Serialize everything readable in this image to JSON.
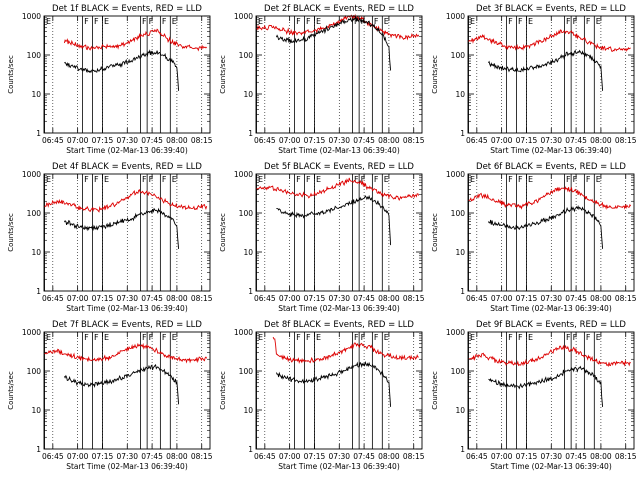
{
  "figure": {
    "ylabel": "Counts/sec",
    "xlabel": "Start Time (02-Mar-13 06:39:40)",
    "x_ticks": [
      "06:45",
      "07:00",
      "07:15",
      "07:30",
      "07:45",
      "08:00",
      "08:15"
    ],
    "y_ticks": [
      "1",
      "10",
      "100",
      "1000"
    ]
  },
  "colors": {
    "events": "#000000",
    "lld": "#dd0000",
    "axes": "#000000",
    "background": "#ffffff"
  },
  "chart_data": [
    {
      "type": "line",
      "title": "Det 1f BLACK = Events, RED = LLD",
      "xlabel": "Start Time (02-Mar-13 06:39:40)",
      "ylabel": "Counts/sec",
      "ylim": [
        1,
        1000
      ],
      "yscale": "log",
      "x_range": [
        "06:39:40",
        "08:20"
      ],
      "markers": [
        {
          "time": "06:40",
          "label": "E"
        },
        {
          "time": "07:03",
          "label": "F"
        },
        {
          "time": "07:09",
          "label": "F"
        },
        {
          "time": "07:15",
          "label": "E"
        },
        {
          "time": "07:38",
          "label": "F"
        },
        {
          "time": "07:42",
          "label": "F"
        },
        {
          "time": "07:50",
          "label": "F"
        },
        {
          "time": "07:56",
          "label": "E"
        }
      ],
      "series": [
        {
          "name": "RED = LLD",
          "color": "#dd0000",
          "x": [
            "06:52",
            "07:00",
            "07:08",
            "07:16",
            "07:24",
            "07:32",
            "07:40",
            "07:48",
            "07:56",
            "08:04",
            "08:12",
            "08:18"
          ],
          "values": [
            240,
            175,
            150,
            160,
            170,
            220,
            340,
            410,
            230,
            160,
            145,
            160
          ]
        },
        {
          "name": "BLACK = Events",
          "color": "#000000",
          "x": [
            "06:52",
            "07:00",
            "07:08",
            "07:16",
            "07:24",
            "07:32",
            "07:40",
            "07:48",
            "07:56",
            "08:00",
            "08:01"
          ],
          "values": [
            62,
            45,
            40,
            45,
            55,
            70,
            105,
            120,
            75,
            48,
            12
          ]
        }
      ]
    },
    {
      "type": "line",
      "title": "Det 2f BLACK = Events, RED = LLD",
      "xlabel": "Start Time (02-Mar-13 06:39:40)",
      "ylabel": "Counts/sec",
      "ylim": [
        1,
        1000
      ],
      "yscale": "log",
      "x_range": [
        "06:39:40",
        "08:20"
      ],
      "markers": [
        {
          "time": "06:40",
          "label": "E"
        },
        {
          "time": "07:03",
          "label": "F"
        },
        {
          "time": "07:09",
          "label": "F"
        },
        {
          "time": "07:15",
          "label": "E"
        },
        {
          "time": "07:38",
          "label": "F"
        },
        {
          "time": "07:42",
          "label": "F"
        },
        {
          "time": "07:50",
          "label": "F"
        },
        {
          "time": "07:56",
          "label": "E"
        }
      ],
      "series": [
        {
          "name": "RED = LLD",
          "color": "#dd0000",
          "x": [
            "06:40",
            "06:48",
            "06:56",
            "07:04",
            "07:12",
            "07:20",
            "07:28",
            "07:36",
            "07:44",
            "07:52",
            "08:00",
            "08:08",
            "08:18"
          ],
          "values": [
            480,
            520,
            430,
            360,
            380,
            480,
            650,
            1000,
            820,
            500,
            340,
            280,
            330
          ]
        },
        {
          "name": "BLACK = Events",
          "color": "#000000",
          "x": [
            "06:52",
            "07:00",
            "07:08",
            "07:16",
            "07:24",
            "07:32",
            "07:40",
            "07:48",
            "07:56",
            "08:00",
            "08:01"
          ],
          "values": [
            300,
            230,
            240,
            330,
            500,
            700,
            860,
            640,
            360,
            160,
            40
          ]
        }
      ]
    },
    {
      "type": "line",
      "title": "Det 3f BLACK = Events, RED = LLD",
      "xlabel": "Start Time (02-Mar-13 06:39:40)",
      "ylabel": "Counts/sec",
      "ylim": [
        1,
        1000
      ],
      "yscale": "log",
      "x_range": [
        "06:39:40",
        "08:20"
      ],
      "markers": [
        {
          "time": "06:40",
          "label": "E"
        },
        {
          "time": "07:03",
          "label": "F"
        },
        {
          "time": "07:09",
          "label": "F"
        },
        {
          "time": "07:15",
          "label": "E"
        },
        {
          "time": "07:38",
          "label": "F"
        },
        {
          "time": "07:42",
          "label": "F"
        },
        {
          "time": "07:50",
          "label": "F"
        },
        {
          "time": "07:56",
          "label": "E"
        }
      ],
      "series": [
        {
          "name": "RED = LLD",
          "color": "#dd0000",
          "x": [
            "06:40",
            "06:48",
            "06:56",
            "07:04",
            "07:12",
            "07:20",
            "07:28",
            "07:36",
            "07:44",
            "07:52",
            "08:00",
            "08:08",
            "08:18"
          ],
          "values": [
            220,
            300,
            210,
            160,
            150,
            190,
            280,
            400,
            350,
            220,
            150,
            140,
            150
          ]
        },
        {
          "name": "BLACK = Events",
          "color": "#000000",
          "x": [
            "06:52",
            "07:00",
            "07:08",
            "07:16",
            "07:24",
            "07:32",
            "07:40",
            "07:48",
            "07:56",
            "08:00",
            "08:01"
          ],
          "values": [
            62,
            45,
            40,
            45,
            55,
            70,
            105,
            120,
            75,
            48,
            12
          ]
        }
      ]
    },
    {
      "type": "line",
      "title": "Det 4f BLACK = Events, RED = LLD",
      "xlabel": "Start Time (02-Mar-13 06:39:40)",
      "ylabel": "Counts/sec",
      "ylim": [
        1,
        1000
      ],
      "yscale": "log",
      "x_range": [
        "06:39:40",
        "08:20"
      ],
      "markers": [
        {
          "time": "06:40",
          "label": "E"
        },
        {
          "time": "07:03",
          "label": "F"
        },
        {
          "time": "07:09",
          "label": "F"
        },
        {
          "time": "07:15",
          "label": "E"
        },
        {
          "time": "07:38",
          "label": "F"
        },
        {
          "time": "07:42",
          "label": "F"
        },
        {
          "time": "07:50",
          "label": "F"
        },
        {
          "time": "07:56",
          "label": "E"
        }
      ],
      "series": [
        {
          "name": "RED = LLD",
          "color": "#dd0000",
          "x": [
            "06:40",
            "06:48",
            "06:56",
            "07:04",
            "07:12",
            "07:20",
            "07:28",
            "07:36",
            "07:44",
            "07:52",
            "08:00",
            "08:08",
            "08:18"
          ],
          "values": [
            160,
            200,
            160,
            130,
            120,
            150,
            230,
            370,
            320,
            200,
            150,
            130,
            150
          ]
        },
        {
          "name": "BLACK = Events",
          "color": "#000000",
          "x": [
            "06:52",
            "07:00",
            "07:08",
            "07:16",
            "07:24",
            "07:32",
            "07:40",
            "07:48",
            "07:56",
            "08:00",
            "08:01"
          ],
          "values": [
            60,
            45,
            40,
            45,
            55,
            70,
            105,
            120,
            75,
            45,
            12
          ]
        }
      ]
    },
    {
      "type": "line",
      "title": "Det 5f BLACK = Events, RED = LLD",
      "xlabel": "Start Time (02-Mar-13 06:39:40)",
      "ylabel": "Counts/sec",
      "ylim": [
        1,
        1000
      ],
      "yscale": "log",
      "x_range": [
        "06:39:40",
        "08:20"
      ],
      "markers": [
        {
          "time": "06:40",
          "label": "E"
        },
        {
          "time": "07:03",
          "label": "F"
        },
        {
          "time": "07:09",
          "label": "F"
        },
        {
          "time": "07:15",
          "label": "E"
        },
        {
          "time": "07:38",
          "label": "F"
        },
        {
          "time": "07:42",
          "label": "F"
        },
        {
          "time": "07:50",
          "label": "F"
        },
        {
          "time": "07:56",
          "label": "E"
        }
      ],
      "series": [
        {
          "name": "RED = LLD",
          "color": "#dd0000",
          "x": [
            "06:40",
            "06:48",
            "06:56",
            "07:04",
            "07:12",
            "07:20",
            "07:28",
            "07:36",
            "07:44",
            "07:52",
            "08:00",
            "08:08",
            "08:18"
          ],
          "values": [
            430,
            470,
            380,
            290,
            280,
            350,
            500,
            680,
            560,
            360,
            270,
            250,
            280
          ]
        },
        {
          "name": "BLACK = Events",
          "color": "#000000",
          "x": [
            "06:52",
            "07:00",
            "07:08",
            "07:16",
            "07:24",
            "07:32",
            "07:40",
            "07:48",
            "07:56",
            "08:00",
            "08:01"
          ],
          "values": [
            130,
            95,
            85,
            95,
            115,
            150,
            210,
            250,
            150,
            90,
            15
          ]
        }
      ]
    },
    {
      "type": "line",
      "title": "Det 6f BLACK = Events, RED = LLD",
      "xlabel": "Start Time (02-Mar-13 06:39:40)",
      "ylabel": "Counts/sec",
      "ylim": [
        1,
        1000
      ],
      "yscale": "log",
      "x_range": [
        "06:39:40",
        "08:20"
      ],
      "markers": [
        {
          "time": "06:40",
          "label": "E"
        },
        {
          "time": "07:03",
          "label": "F"
        },
        {
          "time": "07:09",
          "label": "F"
        },
        {
          "time": "07:15",
          "label": "E"
        },
        {
          "time": "07:38",
          "label": "F"
        },
        {
          "time": "07:42",
          "label": "F"
        },
        {
          "time": "07:50",
          "label": "F"
        },
        {
          "time": "07:56",
          "label": "E"
        }
      ],
      "series": [
        {
          "name": "RED = LLD",
          "color": "#dd0000",
          "x": [
            "06:40",
            "06:48",
            "06:56",
            "07:04",
            "07:12",
            "07:20",
            "07:28",
            "07:36",
            "07:44",
            "07:52",
            "08:00",
            "08:08",
            "08:18"
          ],
          "values": [
            210,
            290,
            200,
            160,
            150,
            200,
            300,
            450,
            380,
            230,
            160,
            140,
            150
          ]
        },
        {
          "name": "BLACK = Events",
          "color": "#000000",
          "x": [
            "06:52",
            "07:00",
            "07:08",
            "07:16",
            "07:24",
            "07:32",
            "07:40",
            "07:48",
            "07:56",
            "08:00",
            "08:01"
          ],
          "values": [
            62,
            48,
            42,
            48,
            60,
            80,
            120,
            140,
            80,
            50,
            12
          ]
        }
      ]
    },
    {
      "type": "line",
      "title": "Det 7f BLACK = Events, RED = LLD",
      "xlabel": "Start Time (02-Mar-13 06:39:40)",
      "ylabel": "Counts/sec",
      "ylim": [
        1,
        1000
      ],
      "yscale": "log",
      "x_range": [
        "06:39:40",
        "08:20"
      ],
      "markers": [
        {
          "time": "06:40",
          "label": "E"
        },
        {
          "time": "07:03",
          "label": "F"
        },
        {
          "time": "07:09",
          "label": "F"
        },
        {
          "time": "07:15",
          "label": "E"
        },
        {
          "time": "07:38",
          "label": "F"
        },
        {
          "time": "07:42",
          "label": "F"
        },
        {
          "time": "07:50",
          "label": "F"
        },
        {
          "time": "07:56",
          "label": "E"
        }
      ],
      "series": [
        {
          "name": "RED = LLD",
          "color": "#dd0000",
          "x": [
            "06:40",
            "06:48",
            "06:56",
            "07:04",
            "07:12",
            "07:20",
            "07:28",
            "07:36",
            "07:44",
            "07:52",
            "08:00",
            "08:08",
            "08:18"
          ],
          "values": [
            280,
            320,
            250,
            200,
            190,
            230,
            340,
            460,
            400,
            260,
            200,
            190,
            210
          ]
        },
        {
          "name": "BLACK = Events",
          "color": "#000000",
          "x": [
            "06:52",
            "07:00",
            "07:08",
            "07:16",
            "07:24",
            "07:32",
            "07:40",
            "07:48",
            "07:56",
            "08:00",
            "08:01"
          ],
          "values": [
            70,
            50,
            45,
            50,
            60,
            80,
            115,
            130,
            80,
            50,
            14
          ]
        }
      ]
    },
    {
      "type": "line",
      "title": "Det 8f BLACK = Events, RED = LLD",
      "xlabel": "Start Time (02-Mar-13 06:39:40)",
      "ylabel": "Counts/sec",
      "ylim": [
        1,
        1000
      ],
      "yscale": "log",
      "x_range": [
        "06:39:40",
        "08:20"
      ],
      "markers": [
        {
          "time": "06:40",
          "label": "E"
        },
        {
          "time": "07:03",
          "label": "F"
        },
        {
          "time": "07:09",
          "label": "F"
        },
        {
          "time": "07:15",
          "label": "E"
        },
        {
          "time": "07:38",
          "label": "F"
        },
        {
          "time": "07:42",
          "label": "F"
        },
        {
          "time": "07:50",
          "label": "F"
        },
        {
          "time": "07:56",
          "label": "E"
        }
      ],
      "series": [
        {
          "name": "RED = LLD",
          "color": "#dd0000",
          "x": [
            "06:50",
            "06:51",
            "06:52",
            "07:00",
            "07:08",
            "07:16",
            "07:24",
            "07:32",
            "07:40",
            "07:48",
            "07:56",
            "08:04",
            "08:12",
            "08:18"
          ],
          "values": [
            700,
            700,
            260,
            200,
            180,
            190,
            230,
            330,
            480,
            420,
            270,
            220,
            210,
            230
          ]
        },
        {
          "name": "BLACK = Events",
          "color": "#000000",
          "x": [
            "06:52",
            "07:00",
            "07:08",
            "07:16",
            "07:24",
            "07:32",
            "07:40",
            "07:48",
            "07:56",
            "08:00",
            "08:01"
          ],
          "values": [
            85,
            62,
            55,
            62,
            75,
            95,
            140,
            150,
            90,
            50,
            12
          ]
        }
      ]
    },
    {
      "type": "line",
      "title": "Det 9f BLACK = Events, RED = LLD",
      "xlabel": "Start Time (02-Mar-13 06:39:40)",
      "ylabel": "Counts/sec",
      "ylim": [
        1,
        1000
      ],
      "yscale": "log",
      "x_range": [
        "06:39:40",
        "08:20"
      ],
      "markers": [
        {
          "time": "06:40",
          "label": "E"
        },
        {
          "time": "07:03",
          "label": "F"
        },
        {
          "time": "07:09",
          "label": "F"
        },
        {
          "time": "07:15",
          "label": "E"
        },
        {
          "time": "07:38",
          "label": "F"
        },
        {
          "time": "07:42",
          "label": "F"
        },
        {
          "time": "07:50",
          "label": "F"
        },
        {
          "time": "07:56",
          "label": "E"
        }
      ],
      "series": [
        {
          "name": "RED = LLD",
          "color": "#dd0000",
          "x": [
            "06:40",
            "06:48",
            "06:56",
            "07:04",
            "07:12",
            "07:20",
            "07:28",
            "07:36",
            "07:44",
            "07:52",
            "08:00",
            "08:08",
            "08:18"
          ],
          "values": [
            200,
            260,
            190,
            160,
            150,
            190,
            280,
            400,
            350,
            220,
            160,
            150,
            160
          ]
        },
        {
          "name": "BLACK = Events",
          "color": "#000000",
          "x": [
            "06:52",
            "07:00",
            "07:08",
            "07:16",
            "07:24",
            "07:32",
            "07:40",
            "07:48",
            "07:56",
            "08:00",
            "08:01"
          ],
          "values": [
            62,
            45,
            40,
            45,
            55,
            70,
            105,
            120,
            75,
            48,
            12
          ]
        }
      ]
    }
  ]
}
